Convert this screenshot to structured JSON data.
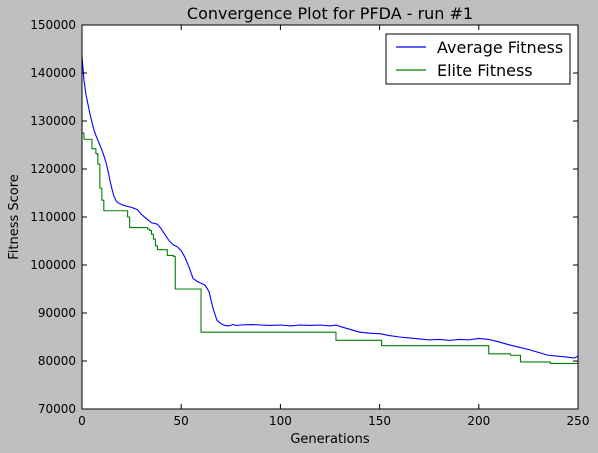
{
  "chart_data": {
    "type": "line",
    "title": "Convergence Plot for PFDA - run #1",
    "xlabel": "Generations",
    "ylabel": "Fitness Score",
    "xlim": [
      0,
      250
    ],
    "ylim": [
      70000,
      150000
    ],
    "xticks": [
      0,
      50,
      100,
      150,
      200,
      250
    ],
    "yticks": [
      70000,
      80000,
      90000,
      100000,
      110000,
      120000,
      130000,
      140000,
      150000
    ],
    "legend_position": "top-right",
    "series": [
      {
        "name": "Average Fitness",
        "color": "#0000ff",
        "step": false,
        "x": [
          0,
          1,
          2,
          3,
          4,
          5,
          6,
          7,
          8,
          9,
          10,
          11,
          12,
          13,
          14,
          15,
          16,
          17,
          18,
          19,
          20,
          22,
          25,
          28,
          30,
          33,
          35,
          38,
          40,
          42,
          44,
          46,
          48,
          50,
          52,
          54,
          56,
          58,
          60,
          62,
          64,
          66,
          68,
          70,
          72,
          74,
          76,
          78,
          80,
          85,
          90,
          95,
          100,
          105,
          110,
          115,
          120,
          125,
          128,
          130,
          135,
          140,
          145,
          150,
          155,
          160,
          165,
          170,
          175,
          180,
          185,
          190,
          195,
          200,
          205,
          210,
          215,
          220,
          225,
          230,
          235,
          240,
          245,
          248,
          250
        ],
        "values": [
          143500,
          138500,
          135500,
          133500,
          131500,
          129800,
          128200,
          127000,
          126000,
          125000,
          124000,
          122800,
          121500,
          119800,
          117800,
          116000,
          114500,
          113500,
          113000,
          112800,
          112600,
          112300,
          112000,
          111500,
          110500,
          109500,
          108800,
          108500,
          107500,
          106200,
          105000,
          104200,
          103800,
          103000,
          101500,
          99500,
          97200,
          96600,
          96200,
          95800,
          94500,
          91000,
          88500,
          87800,
          87400,
          87300,
          87600,
          87400,
          87500,
          87600,
          87500,
          87400,
          87500,
          87300,
          87500,
          87400,
          87500,
          87300,
          87500,
          87200,
          86600,
          86000,
          85800,
          85700,
          85300,
          85000,
          84800,
          84600,
          84400,
          84500,
          84300,
          84500,
          84400,
          84700,
          84500,
          84000,
          83400,
          82900,
          82400,
          81800,
          81200,
          81000,
          80800,
          80600,
          81000
        ]
      },
      {
        "name": "Elite Fitness",
        "color": "#008000",
        "step": true,
        "x": [
          0,
          1,
          4,
          5,
          7,
          8,
          9,
          10,
          11,
          22,
          23,
          24,
          31,
          33,
          34,
          35,
          36,
          37,
          38,
          42,
          43,
          46,
          47,
          59,
          60,
          127,
          128,
          150,
          151,
          204,
          205,
          215,
          216,
          220,
          221,
          235,
          236,
          245,
          250
        ],
        "values": [
          127500,
          126200,
          126200,
          124200,
          123200,
          121000,
          116000,
          113500,
          111300,
          111300,
          110000,
          107800,
          107800,
          107500,
          107200,
          106400,
          105400,
          104000,
          103200,
          103200,
          102000,
          101800,
          95000,
          95000,
          86000,
          86000,
          84300,
          84300,
          83200,
          83200,
          81500,
          81500,
          81200,
          81200,
          79800,
          79800,
          79500,
          79500,
          79500
        ]
      }
    ]
  }
}
